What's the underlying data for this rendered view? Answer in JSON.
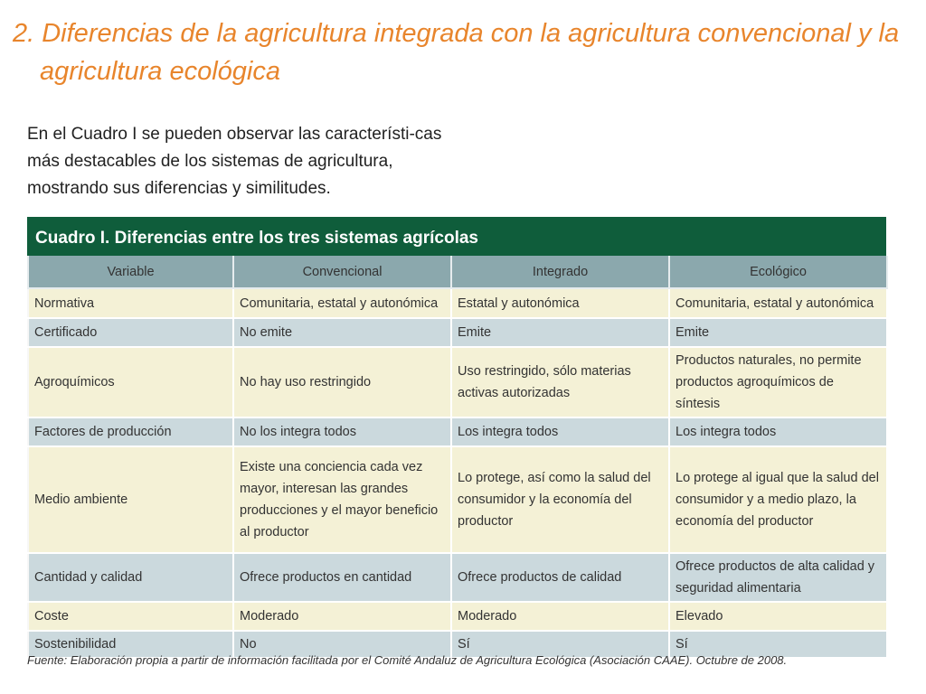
{
  "title": {
    "line1": "2. Diferencias de la agricultura integrada con la agricultura convencional y la",
    "line2": "agricultura ecológica"
  },
  "intro": "En el Cuadro I se pueden observar las característi-cas más destacables de los sistemas de agricultura, mostrando sus diferencias y similitudes.",
  "table": {
    "caption": "Cuadro I. Diferencias entre los tres sistemas agrícolas",
    "headers": [
      "Variable",
      "Convencional",
      "Integrado",
      "Ecológico"
    ],
    "rows": [
      [
        "Normativa",
        "Comunitaria, estatal y autonómica",
        "Estatal y autonómica",
        "Comunitaria, estatal y autonómica"
      ],
      [
        "Certificado",
        "No emite",
        "Emite",
        "Emite"
      ],
      [
        "Agroquímicos",
        "No hay uso restringido",
        "Uso restringido, sólo materias activas autorizadas",
        "Productos naturales, no permite productos agroquímicos de síntesis"
      ],
      [
        "Factores de producción",
        "No los integra todos",
        "Los integra todos",
        "Los integra todos"
      ],
      [
        "Medio ambiente",
        "Existe una conciencia cada vez mayor, interesan las grandes producciones y  el mayor beneficio al productor",
        "Lo protege, así como la salud del consumidor y la economía del productor",
        "Lo protege al igual que la salud del consumidor y a medio plazo, la economía del productor"
      ],
      [
        "Cantidad y calidad",
        "Ofrece productos en cantidad",
        "Ofrece productos de calidad",
        "Ofrece productos de alta calidad y seguridad alimentaria"
      ],
      [
        "Coste",
        "Moderado",
        "Moderado",
        "Elevado"
      ],
      [
        "Sostenibilidad",
        "No",
        "Sí",
        "Sí"
      ]
    ]
  },
  "source": "Fuente: Elaboración propia a partir de información facilitada por el Comité Andaluz de Agricultura Ecológica (Asociación CAAE). Octubre de 2008.",
  "colors": {
    "title": "#e8852c",
    "caption_bg": "#0f5d3b",
    "header_bg": "#8ba8ad",
    "row_odd": "#f4f1d6",
    "row_even": "#cbd9dd"
  }
}
